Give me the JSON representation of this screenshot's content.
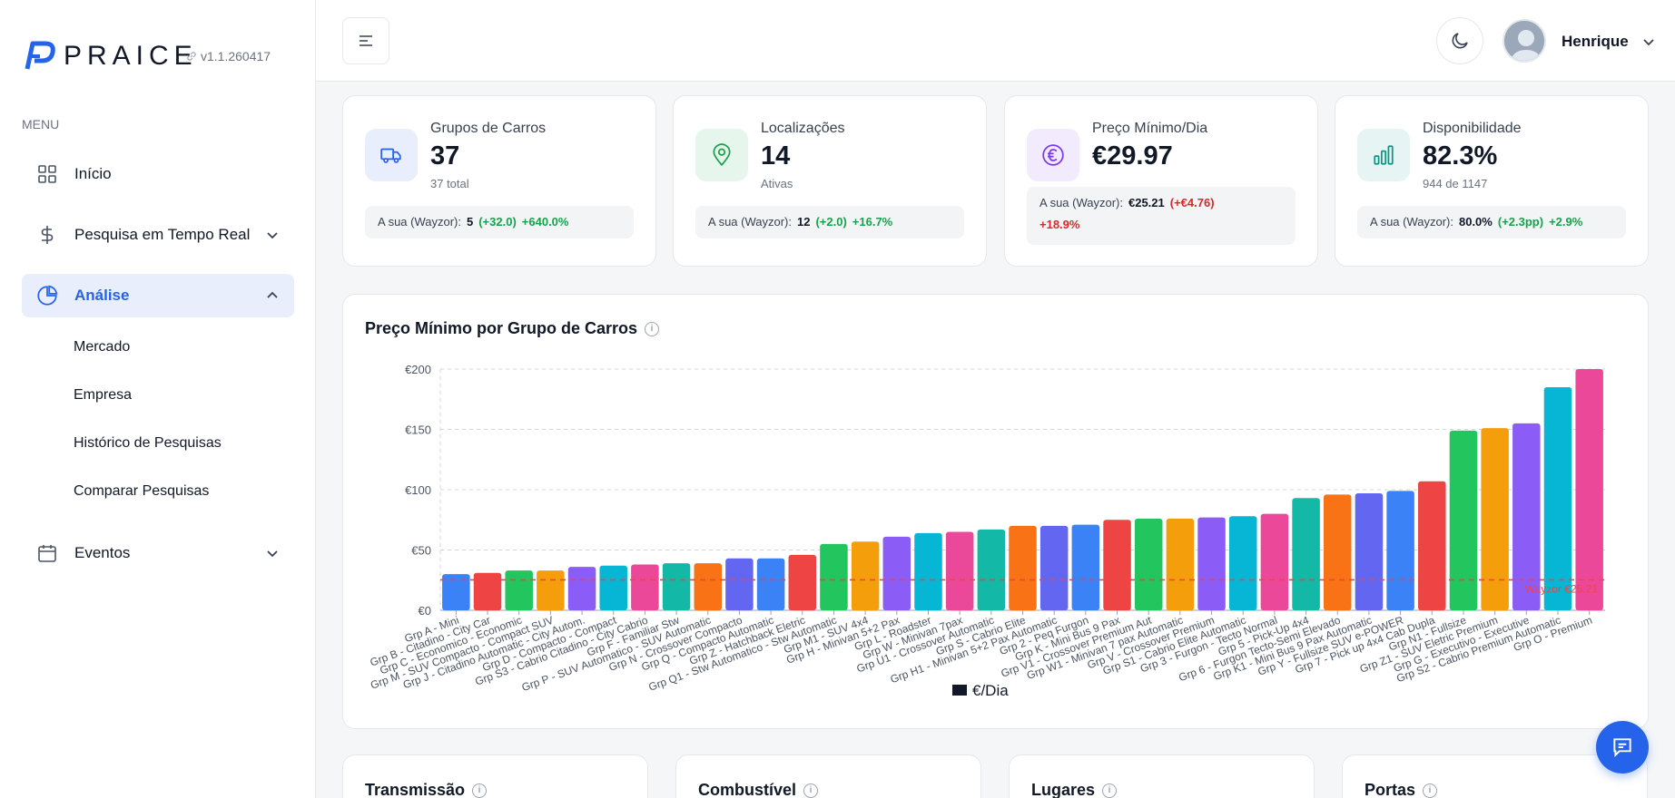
{
  "app": {
    "logo_text": "PRAICE",
    "version": "v1.1.260417"
  },
  "sidebar": {
    "menu_label": "MENU",
    "items": [
      {
        "label": "Início",
        "icon": "grid-icon"
      },
      {
        "label": "Pesquisa em Tempo Real",
        "icon": "dollar-icon"
      },
      {
        "label": "Análise",
        "icon": "pie-chart-icon"
      },
      {
        "label": "Eventos",
        "icon": "calendar-icon"
      }
    ],
    "sub_items": [
      "Mercado",
      "Empresa",
      "Histórico de Pesquisas",
      "Comparar Pesquisas"
    ]
  },
  "header": {
    "user_name": "Henrique"
  },
  "stats": [
    {
      "title": "Grupos de Carros",
      "value": "37",
      "sub": "37 total",
      "cmp_label": "A sua (Wayzor):",
      "cmp_value": "5",
      "delta_abs": "(+32.0)",
      "delta_pct": "+640.0%",
      "icon": "truck-icon",
      "accent": "#2563eb",
      "bg": "#e8eefb",
      "delta_color": "pos"
    },
    {
      "title": "Localizações",
      "value": "14",
      "sub": "Ativas",
      "cmp_label": "A sua (Wayzor):",
      "cmp_value": "12",
      "delta_abs": "(+2.0)",
      "delta_pct": "+16.7%",
      "icon": "map-pin-icon",
      "accent": "#16a34a",
      "bg": "#e7f6ec",
      "delta_color": "pos"
    },
    {
      "title": "Preço Mínimo/Dia",
      "value": "€29.97",
      "sub": "",
      "cmp_label": "A sua (Wayzor):",
      "cmp_value": "€25.21",
      "delta_abs": "(+€4.76)",
      "delta_pct": "+18.9%",
      "icon": "euro-icon",
      "accent": "#7c3aed",
      "bg": "#f1ebfd",
      "delta_color": "neg"
    },
    {
      "title": "Disponibilidade",
      "value": "82.3%",
      "sub": "944 de 1147",
      "cmp_label": "A sua (Wayzor):",
      "cmp_value": "80.0%",
      "delta_abs": "(+2.3pp)",
      "delta_pct": "+2.9%",
      "icon": "bar-chart-icon",
      "accent": "#0d9488",
      "bg": "#e6f5f3",
      "delta_color": "pos"
    }
  ],
  "chart_section": {
    "title": "Preço Mínimo por Grupo de Carros"
  },
  "bottom_cards": [
    "Transmissão",
    "Combustível",
    "Lugares",
    "Portas"
  ],
  "chart_data": {
    "type": "bar",
    "title": "Preço Mínimo por Grupo de Carros",
    "legend": "€/Dia",
    "legend_position": "bottom",
    "grid": true,
    "ylim": [
      0,
      200
    ],
    "yticks": [
      "€0",
      "€50",
      "€100",
      "€150",
      "€200"
    ],
    "reference_line": {
      "value": 25.21,
      "label": "Wayzor €25.21",
      "color": "#ef4444"
    },
    "categories": [
      "Grp A - Mini",
      "Grp B - Citadino - City Car",
      "Grp C - Economico - Economic",
      "Grp M - SUV Compacto - Compact SUV",
      "Grp J - Citadino Automatic - City Autom.",
      "Grp D - Compacto - Compact",
      "Grp S3 - Cabrio Citadino - City Cabrio",
      "Grp F - Familiar Stw",
      "Grp P - SUV Automatico - SUV Automatic",
      "Grp N - Crossover Compacto",
      "Grp Q - Compacto Automatic",
      "Grp Z - Hatchback Eletric",
      "Grp Q1 - Stw Automatico - Stw Automatic",
      "Grp M1 - SUV 4x4",
      "Grp H - Minivan 5+2 Pax",
      "Grp L - Roadster",
      "Grp W - Minivan 7pax",
      "Grp U1 - Crossover Automatic",
      "Grp S - Cabrio Elite",
      "Grp H1 - Minivan 5+2 Pax Automatic",
      "Grp 2 - Peq Furgon",
      "Grp K - Mini Bus 9 Pax",
      "Grp V1 - Crossover Premium Aut",
      "Grp W1 - Minivan 7 pax Automatic",
      "Grp V - Crossover Premium",
      "Grp S1 - Cabrio Elite Automatic",
      "Grp 3 - Furgon - Tecto Normal",
      "Grp 5 - Pick-Up 4x4",
      "Grp 6 - Furgon Tecto-Semi Elevado",
      "Grp K1 - Mini Bus 9 Pax Automatic",
      "Grp Y - Fullsize SUV e-POWER",
      "Grp 7 - Pick up 4x4 Cab Dupla",
      "Grp N1 - Fullsize",
      "Grp Z1 - SUV Eletric Premium",
      "Grp G - Executivo - Executive",
      "Grp S2 - Cabrio Premium Automatic",
      "Grp O - Premium"
    ],
    "values": [
      30,
      31,
      33,
      33,
      36,
      37,
      38,
      39,
      39,
      43,
      43,
      46,
      55,
      57,
      61,
      64,
      65,
      67,
      70,
      70,
      71,
      75,
      76,
      76,
      77,
      78,
      80,
      93,
      96,
      97,
      99,
      107,
      149,
      151,
      155,
      185,
      200
    ],
    "bar_colors": [
      "#3b82f6",
      "#ef4444",
      "#22c55e",
      "#f59e0b",
      "#8b5cf6",
      "#06b6d4",
      "#ec4899",
      "#14b8a6",
      "#f97316",
      "#6366f1"
    ]
  }
}
